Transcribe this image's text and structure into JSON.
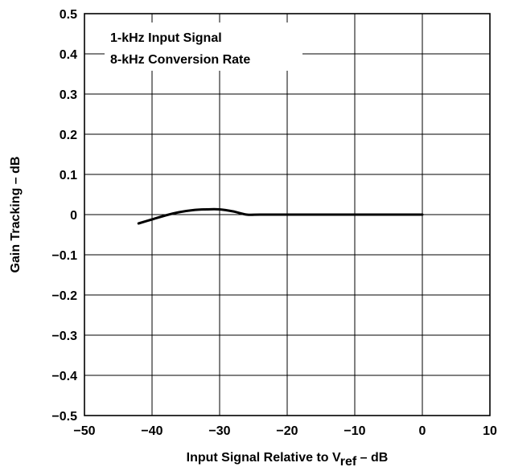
{
  "chart_data": {
    "type": "line",
    "title": "",
    "xlabel": {
      "prefix": "Input Signal Relative to V",
      "subscript": "ref",
      "suffix": " – dB"
    },
    "ylabel": "Gain Tracking – dB",
    "xlim": [
      -50,
      10
    ],
    "ylim": [
      -0.5,
      0.5
    ],
    "x_ticks": [
      -50,
      -40,
      -30,
      -20,
      -10,
      0,
      10
    ],
    "x_tick_labels": [
      "−50",
      "−40",
      "−30",
      "−20",
      "−10",
      "0",
      "10"
    ],
    "y_ticks": [
      0.5,
      0.4,
      0.3,
      0.2,
      0.1,
      0,
      -0.1,
      -0.2,
      -0.3,
      -0.4,
      -0.5
    ],
    "y_tick_labels": [
      "0.5",
      "0.4",
      "0.3",
      "0.2",
      "0.1",
      "0",
      "−0.1",
      "−0.2",
      "−0.3",
      "−0.4",
      "−0.5"
    ],
    "grid": true,
    "annotations": [
      "1-kHz Input Signal",
      "8-kHz Conversion Rate"
    ],
    "series": [
      {
        "x": [
          -42,
          -40,
          -38,
          -36,
          -34,
          -32,
          -30,
          -28,
          -26,
          -24,
          -20,
          -15,
          -10,
          -5,
          0
        ],
        "y": [
          -0.022,
          -0.012,
          -0.002,
          0.006,
          0.011,
          0.013,
          0.013,
          0.008,
          0.0,
          0.0,
          0.0,
          0.0,
          0.0,
          0.0,
          0.0
        ]
      }
    ]
  }
}
